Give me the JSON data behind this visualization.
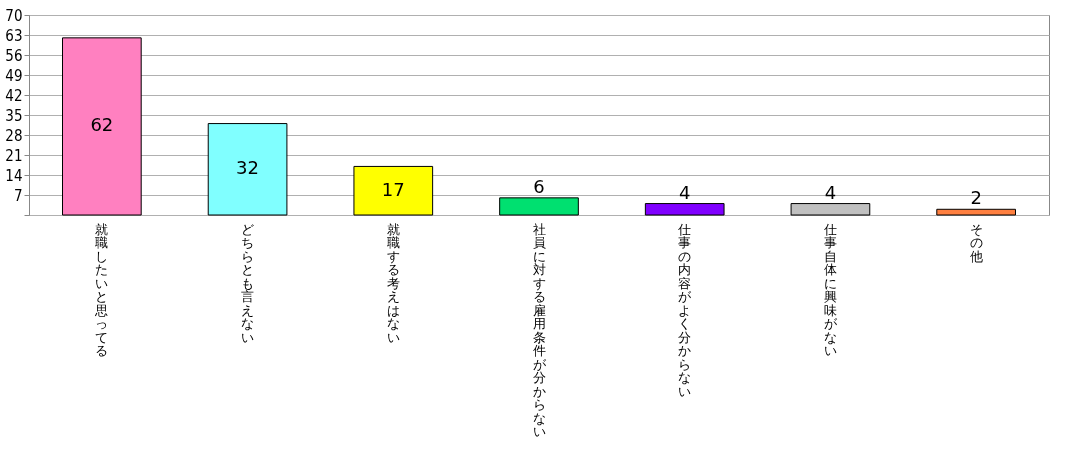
{
  "chart_data": {
    "type": "bar",
    "categories": [
      "就職したいと思ってる",
      "どちらとも言えない",
      "就職する考えはない",
      "社員に対する雇用条件が分からない",
      "仕事の内容がよく分からない",
      "仕事自体に興味がない",
      "その他"
    ],
    "values": [
      62,
      32,
      17,
      6,
      4,
      4,
      2
    ],
    "colors": [
      "#ff80c0",
      "#80ffff",
      "#ffff00",
      "#00e070",
      "#8000ff",
      "#c0c0c0",
      "#ff8040"
    ],
    "ylim": [
      0,
      70
    ],
    "yticks": [
      {
        "value": 0,
        "label": null
      },
      7,
      14,
      21,
      28,
      35,
      42,
      49,
      56,
      63,
      70
    ],
    "grid": true,
    "data_labels": true
  }
}
